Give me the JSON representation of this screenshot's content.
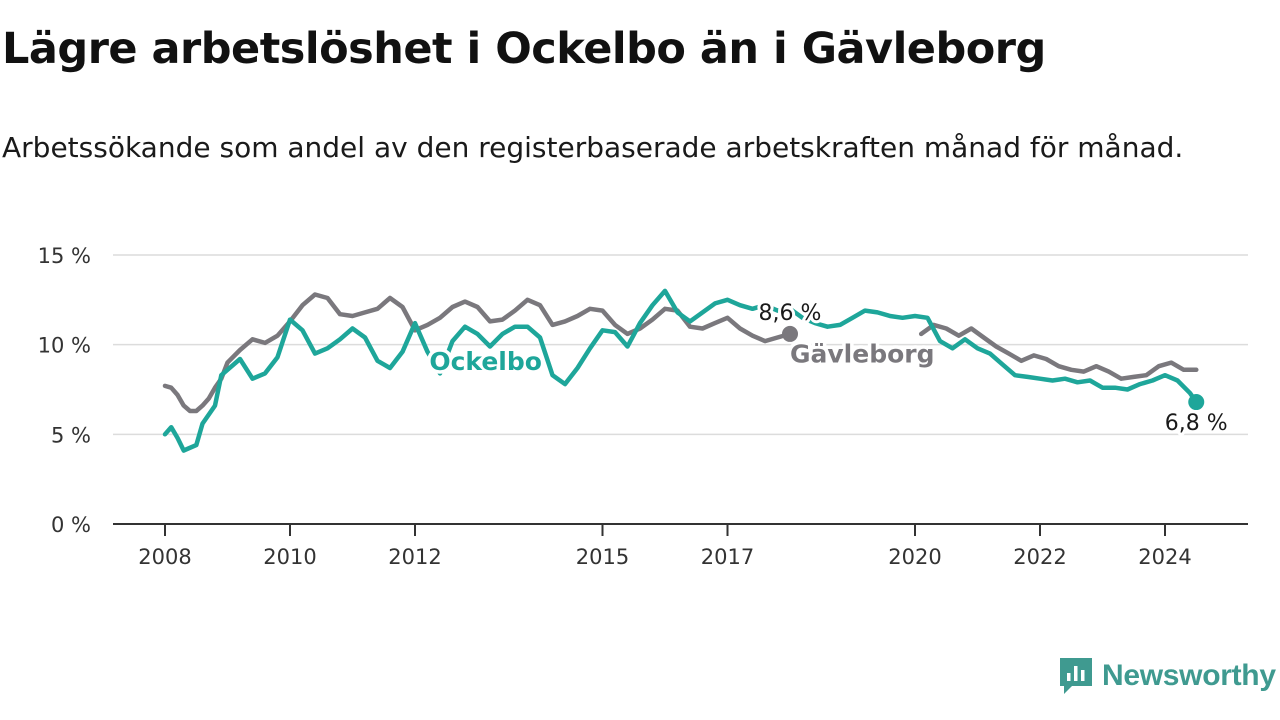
{
  "header": {
    "title": "Lägre arbetslöshet i Ockelbo än i Gävleborg",
    "subtitle": "Arbetssökande som andel av den registerbaserade arbetskraften månad för månad."
  },
  "logo": {
    "text": "Newsworthy",
    "icon": "newsworthy-logo-icon",
    "color": "#3f9a90"
  },
  "chart_data": {
    "type": "line",
    "title": "Lägre arbetslöshet i Ockelbo än i Gävleborg",
    "subtitle": "Arbetssökande som andel av den registerbaserade arbetskraften månad för månad.",
    "xlabel": "",
    "ylabel": "",
    "ylim": [
      0,
      15
    ],
    "xlim": [
      2007.9,
      2025.3
    ],
    "y_ticks": [
      0,
      5,
      10,
      15
    ],
    "y_tick_labels": [
      "0 %",
      "5 %",
      "10 %",
      "15 %"
    ],
    "x_ticks": [
      2008,
      2010,
      2012,
      2015,
      2017,
      2020,
      2022,
      2024
    ],
    "x_tick_labels": [
      "2008",
      "2010",
      "2012",
      "2015",
      "2017",
      "2020",
      "2022",
      "2024"
    ],
    "grid": "horizontal",
    "legend": "inline labels",
    "series": [
      {
        "name": "Gävleborg",
        "color": "#7a787d",
        "end_label": "8,6 %",
        "points": [
          [
            2008.0,
            7.7
          ],
          [
            2008.1,
            7.6
          ],
          [
            2008.2,
            7.2
          ],
          [
            2008.3,
            6.6
          ],
          [
            2008.4,
            6.3
          ],
          [
            2008.5,
            6.3
          ],
          [
            2008.6,
            6.6
          ],
          [
            2008.7,
            7.0
          ],
          [
            2008.8,
            7.6
          ],
          [
            2008.9,
            8.1
          ],
          [
            2009.0,
            9.0
          ],
          [
            2009.2,
            9.7
          ],
          [
            2009.4,
            10.3
          ],
          [
            2009.6,
            10.1
          ],
          [
            2009.8,
            10.5
          ],
          [
            2010.0,
            11.3
          ],
          [
            2010.2,
            12.2
          ],
          [
            2010.4,
            12.8
          ],
          [
            2010.6,
            12.6
          ],
          [
            2010.8,
            11.7
          ],
          [
            2011.0,
            11.6
          ],
          [
            2011.2,
            11.8
          ],
          [
            2011.4,
            12.0
          ],
          [
            2011.6,
            12.6
          ],
          [
            2011.8,
            12.1
          ],
          [
            2012.0,
            10.8
          ],
          [
            2012.2,
            11.1
          ],
          [
            2012.4,
            11.5
          ],
          [
            2012.6,
            12.1
          ],
          [
            2012.8,
            12.4
          ],
          [
            2013.0,
            12.1
          ],
          [
            2013.2,
            11.3
          ],
          [
            2013.4,
            11.4
          ],
          [
            2013.6,
            11.9
          ],
          [
            2013.8,
            12.5
          ],
          [
            2014.0,
            12.2
          ],
          [
            2014.2,
            11.1
          ],
          [
            2014.4,
            11.3
          ],
          [
            2014.6,
            11.6
          ],
          [
            2014.8,
            12.0
          ],
          [
            2015.0,
            11.9
          ],
          [
            2015.2,
            11.1
          ],
          [
            2015.4,
            10.6
          ],
          [
            2015.6,
            10.9
          ],
          [
            2015.8,
            11.4
          ],
          [
            2016.0,
            12.0
          ],
          [
            2016.2,
            11.9
          ],
          [
            2016.4,
            11.0
          ],
          [
            2016.6,
            10.9
          ],
          [
            2016.8,
            11.2
          ],
          [
            2017.0,
            11.5
          ],
          [
            2017.2,
            10.9
          ],
          [
            2017.4,
            10.5
          ],
          [
            2017.6,
            10.2
          ],
          [
            2017.8,
            10.4
          ],
          [
            2018.0,
            10.6
          ]
        ]
      },
      {
        "name": "Gävleborg",
        "color": "#7a787d",
        "segment": 2,
        "points": [
          [
            2020.1,
            10.6
          ],
          [
            2020.3,
            11.1
          ],
          [
            2020.5,
            10.9
          ],
          [
            2020.7,
            10.5
          ],
          [
            2020.9,
            10.9
          ],
          [
            2021.1,
            10.4
          ],
          [
            2021.3,
            9.9
          ],
          [
            2021.5,
            9.5
          ],
          [
            2021.7,
            9.1
          ],
          [
            2021.9,
            9.4
          ],
          [
            2022.1,
            9.2
          ],
          [
            2022.3,
            8.8
          ],
          [
            2022.5,
            8.6
          ],
          [
            2022.7,
            8.5
          ],
          [
            2022.9,
            8.8
          ],
          [
            2023.1,
            8.5
          ],
          [
            2023.3,
            8.1
          ],
          [
            2023.5,
            8.2
          ],
          [
            2023.7,
            8.3
          ],
          [
            2023.9,
            8.8
          ],
          [
            2024.1,
            9.0
          ],
          [
            2024.3,
            8.6
          ],
          [
            2024.5,
            8.6
          ]
        ]
      },
      {
        "name": "Ockelbo",
        "color": "#1ea69a",
        "end_label": "6,8 %",
        "points": [
          [
            2008.0,
            5.0
          ],
          [
            2008.1,
            5.4
          ],
          [
            2008.2,
            4.8
          ],
          [
            2008.3,
            4.1
          ],
          [
            2008.5,
            4.4
          ],
          [
            2008.6,
            5.6
          ],
          [
            2008.8,
            6.6
          ],
          [
            2008.9,
            8.3
          ],
          [
            2009.0,
            8.6
          ],
          [
            2009.2,
            9.2
          ],
          [
            2009.4,
            8.1
          ],
          [
            2009.6,
            8.4
          ],
          [
            2009.8,
            9.3
          ],
          [
            2010.0,
            11.4
          ],
          [
            2010.2,
            10.8
          ],
          [
            2010.4,
            9.5
          ],
          [
            2010.6,
            9.8
          ],
          [
            2010.8,
            10.3
          ],
          [
            2011.0,
            10.9
          ],
          [
            2011.2,
            10.4
          ],
          [
            2011.4,
            9.1
          ],
          [
            2011.6,
            8.7
          ],
          [
            2011.8,
            9.6
          ],
          [
            2012.0,
            11.2
          ],
          [
            2012.2,
            9.6
          ],
          [
            2012.4,
            8.4
          ],
          [
            2012.6,
            10.2
          ],
          [
            2012.8,
            11.0
          ],
          [
            2013.0,
            10.6
          ],
          [
            2013.2,
            9.9
          ],
          [
            2013.4,
            10.6
          ],
          [
            2013.6,
            11.0
          ],
          [
            2013.8,
            11.0
          ],
          [
            2014.0,
            10.4
          ],
          [
            2014.2,
            8.3
          ],
          [
            2014.4,
            7.8
          ],
          [
            2014.6,
            8.7
          ],
          [
            2014.8,
            9.8
          ],
          [
            2015.0,
            10.8
          ],
          [
            2015.2,
            10.7
          ],
          [
            2015.4,
            9.9
          ],
          [
            2015.6,
            11.2
          ],
          [
            2015.8,
            12.2
          ],
          [
            2016.0,
            13.0
          ],
          [
            2016.2,
            11.8
          ],
          [
            2016.4,
            11.3
          ],
          [
            2016.6,
            11.8
          ],
          [
            2016.8,
            12.3
          ],
          [
            2017.0,
            12.5
          ],
          [
            2017.2,
            12.2
          ],
          [
            2017.4,
            12.0
          ],
          [
            2017.6,
            12.2
          ],
          [
            2017.8,
            11.9
          ],
          [
            2018.0,
            12.0
          ],
          [
            2018.2,
            11.5
          ],
          [
            2018.4,
            11.2
          ],
          [
            2018.6,
            11.0
          ],
          [
            2018.8,
            11.1
          ],
          [
            2019.0,
            11.5
          ],
          [
            2019.2,
            11.9
          ],
          [
            2019.4,
            11.8
          ],
          [
            2019.6,
            11.6
          ],
          [
            2019.8,
            11.5
          ],
          [
            2020.0,
            11.6
          ],
          [
            2020.2,
            11.5
          ],
          [
            2020.4,
            10.2
          ],
          [
            2020.6,
            9.8
          ],
          [
            2020.8,
            10.3
          ],
          [
            2021.0,
            9.8
          ],
          [
            2021.2,
            9.5
          ],
          [
            2021.4,
            8.9
          ],
          [
            2021.6,
            8.3
          ],
          [
            2021.8,
            8.2
          ],
          [
            2022.0,
            8.1
          ],
          [
            2022.2,
            8.0
          ],
          [
            2022.4,
            8.1
          ],
          [
            2022.6,
            7.9
          ],
          [
            2022.8,
            8.0
          ],
          [
            2023.0,
            7.6
          ],
          [
            2023.2,
            7.6
          ],
          [
            2023.4,
            7.5
          ],
          [
            2023.6,
            7.8
          ],
          [
            2023.8,
            8.0
          ],
          [
            2024.0,
            8.3
          ],
          [
            2024.2,
            8.0
          ],
          [
            2024.4,
            7.3
          ],
          [
            2024.5,
            6.8
          ]
        ]
      }
    ]
  }
}
